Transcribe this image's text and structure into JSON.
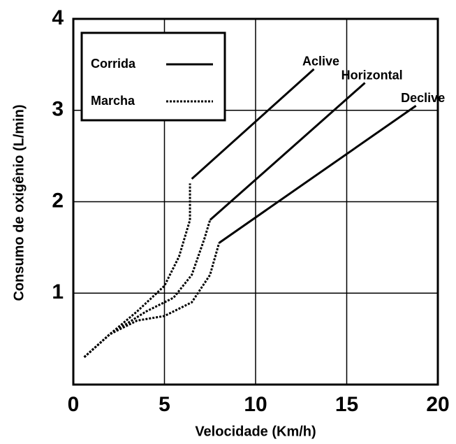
{
  "chart_data": {
    "type": "line",
    "xlabel": "Velocidade (Km/h)",
    "ylabel": "Consumo de oxigênio (L/min)",
    "xlim": [
      0,
      20
    ],
    "xticks": [
      0,
      5,
      10,
      15,
      20
    ],
    "ylim": [
      0,
      4
    ],
    "yticks": [
      1,
      2,
      3,
      4
    ],
    "grid": true,
    "legend_position": "upper left",
    "legend": [
      {
        "label": "Corrida",
        "dash": "solid"
      },
      {
        "label": "Marcha",
        "dash": "dotted"
      }
    ],
    "series": [
      {
        "name": "Aclive",
        "color": "#000000",
        "marcha": {
          "x": [
            0.6,
            2,
            3.5,
            5,
            5.8,
            6.4,
            6.4
          ],
          "values": [
            0.3,
            0.55,
            0.8,
            1.08,
            1.4,
            1.8,
            2.2
          ]
        },
        "corrida": {
          "x": [
            6.5,
            13.2
          ],
          "values": [
            2.25,
            3.45
          ]
        }
      },
      {
        "name": "Horizontal",
        "color": "#000000",
        "marcha": {
          "x": [
            0.6,
            2,
            4,
            5.5,
            6.5,
            7.2,
            7.5
          ],
          "values": [
            0.3,
            0.55,
            0.8,
            0.95,
            1.2,
            1.6,
            1.8
          ]
        },
        "corrida": {
          "x": [
            7.5,
            16
          ],
          "values": [
            1.8,
            3.3
          ]
        }
      },
      {
        "name": "Declive",
        "color": "#000000",
        "marcha": {
          "x": [
            0.6,
            2,
            3.5,
            5,
            6.5,
            7.5,
            8
          ],
          "values": [
            0.3,
            0.55,
            0.7,
            0.75,
            0.9,
            1.2,
            1.55
          ]
        },
        "corrida": {
          "x": [
            8,
            18.8
          ],
          "values": [
            1.55,
            3.05
          ]
        }
      }
    ]
  }
}
